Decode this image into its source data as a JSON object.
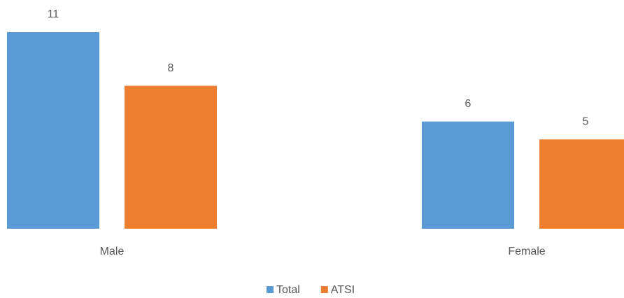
{
  "chart_data": {
    "type": "bar",
    "categories": [
      "Male",
      "Female"
    ],
    "series": [
      {
        "name": "Total",
        "color": "#5b9bd5",
        "values": [
          11,
          6
        ]
      },
      {
        "name": "ATSI",
        "color": "#ed7d31",
        "values": [
          8,
          5
        ]
      }
    ],
    "legend": "bottom"
  }
}
